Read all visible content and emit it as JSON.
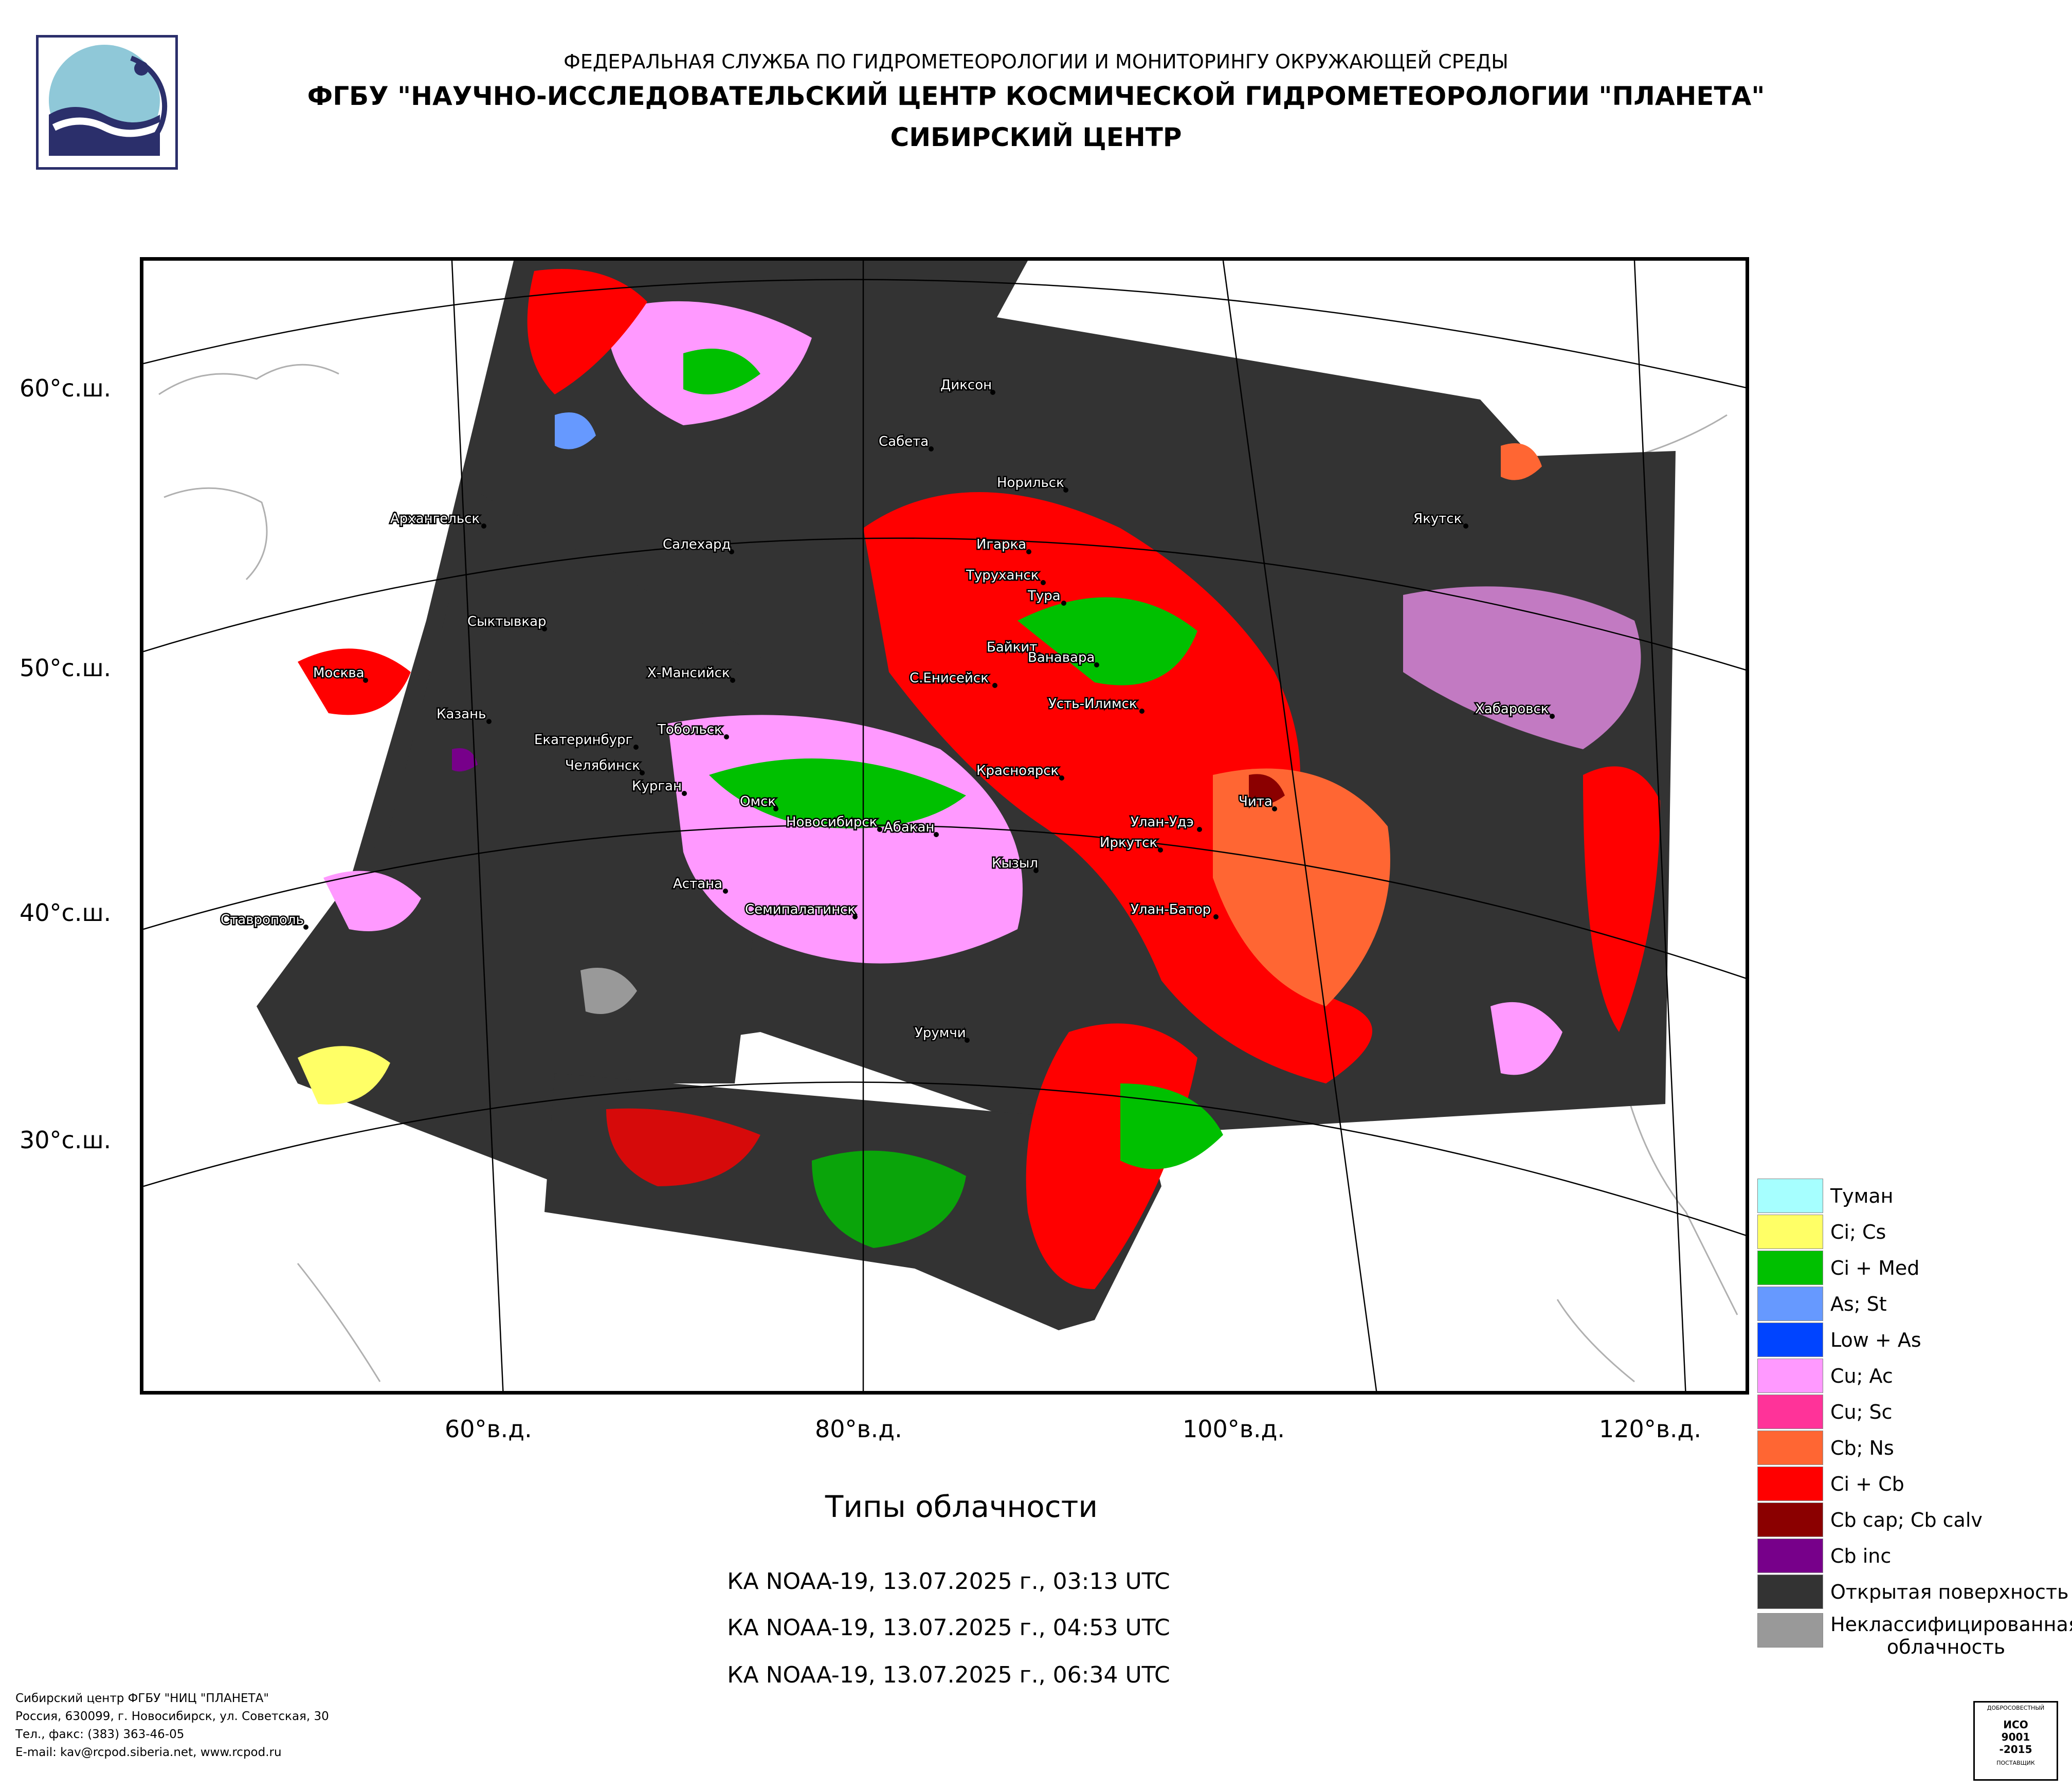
{
  "header": {
    "line1": "ФЕДЕРАЛЬНАЯ СЛУЖБА ПО ГИДРОМЕТЕОРОЛОГИИ И МОНИТОРИНГУ ОКРУЖАЮЩЕЙ СРЕДЫ",
    "line2": "ФГБУ \"НАУЧНО-ИССЛЕДОВАТЕЛЬСКИЙ ЦЕНТР КОСМИЧЕСКОЙ ГИДРОМЕТЕОРОЛОГИИ \"ПЛАНЕТА\"",
    "line3": "СИБИРСКИЙ ЦЕНТР"
  },
  "map": {
    "lat_labels": [
      "60°с.ш.",
      "50°с.ш.",
      "40°с.ш.",
      "30°с.ш."
    ],
    "lon_labels": [
      "60°в.д.",
      "80°в.д.",
      "100°в.д.",
      "120°в.д."
    ],
    "cities": [
      "Диксон",
      "Сабета",
      "Норильск",
      "Архангельск",
      "Салехард",
      "Игарка",
      "Туруханск",
      "Тура",
      "Якутск",
      "Сыктывкар",
      "Байкит",
      "Ванавара",
      "Москва",
      "Х-Мансийск",
      "С.Енисейск",
      "Усть-Илимск",
      "Казань",
      "Тобольск",
      "Хабаровск",
      "Екатеринбург",
      "Челябинск",
      "Курган",
      "Красноярск",
      "Чита",
      "Омск",
      "Новосибирск",
      "Абакан",
      "Улан-Удэ",
      "Иркутск",
      "Кызыл",
      "Ставрополь",
      "Астана",
      "Семипалатинск",
      "Улан-Батор",
      "Урумчи"
    ]
  },
  "legend": [
    {
      "label": "Туман",
      "color": "#a6ffff"
    },
    {
      "label": "Ci; Cs",
      "color": "#ffff66"
    },
    {
      "label": "Ci + Med",
      "color": "#00c000"
    },
    {
      "label": "As; St",
      "color": "#6699ff"
    },
    {
      "label": "Low + As",
      "color": "#0044ff"
    },
    {
      "label": "Cu; Ac",
      "color": "#ff99ff"
    },
    {
      "label": "Cu; Sc",
      "color": "#ff3399"
    },
    {
      "label": "Cb; Ns",
      "color": "#ff6633"
    },
    {
      "label": "Ci + Cb",
      "color": "#ff0000"
    },
    {
      "label": "Cb cap; Cb calv",
      "color": "#8b0000"
    },
    {
      "label": "Cb inc",
      "color": "#77008a"
    },
    {
      "label": "Открытая поверхность",
      "color": "#333333"
    },
    {
      "label": "Неклассифицированная облачность",
      "color": "#999999"
    }
  ],
  "title": "Типы облачности",
  "passes": [
    "КА NOAA-19, 13.07.2025 г., 03:13 UTC",
    "КА NOAA-19, 13.07.2025 г., 04:53 UTC",
    "КА NOAA-19, 13.07.2025 г., 06:34 UTC"
  ],
  "footer": [
    "Сибирский центр ФГБУ \"НИЦ \"ПЛАНЕТА\"",
    "Россия, 630099, г. Новосибирск, ул. Советская, 30",
    "Тел., факс: (383) 363-46-05",
    "E-mail: kav@rcpod.siberia.net, www.rcpod.ru"
  ],
  "iso_badge": {
    "top": "ДОБРОСОВЕСТНЫЙ",
    "line1": "ИСО",
    "line2": "9001",
    "line3": "-2015",
    "bottom": "ПОСТАВЩИК"
  }
}
